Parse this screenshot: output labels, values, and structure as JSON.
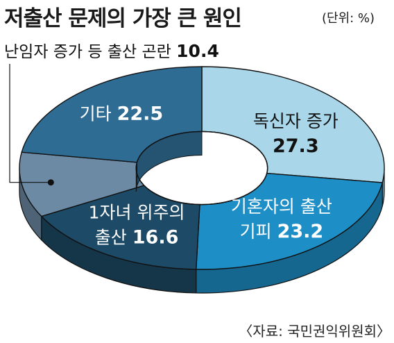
{
  "title": "저출산 문제의 가장 큰 원인",
  "unit": "(단위: %)",
  "source": "〈자료: 국민권익위원회〉",
  "chart_data": {
    "type": "pie",
    "donut": true,
    "unit": "%",
    "slices": [
      {
        "label": "독신자 증가",
        "value": 27.3,
        "label_lines": [
          "독신자 증가"
        ],
        "color": "#a9d6e8",
        "label_color": "#111111",
        "label_pos": "inside"
      },
      {
        "label": "기혼자의 출산 기피",
        "value": 23.2,
        "label_lines": [
          "기혼자의 출산",
          "기피"
        ],
        "color": "#1e8fc6",
        "label_color": "#ffffff",
        "label_pos": "inside"
      },
      {
        "label": "1자녀 위주의 출산",
        "value": 16.6,
        "label_lines": [
          "1자녀 위주의",
          "출산"
        ],
        "color": "#1d4a66",
        "label_color": "#ffffff",
        "label_pos": "inside"
      },
      {
        "label": "난임자 증가 등 출산 곤란",
        "value": 10.4,
        "label_lines": [
          "난임자 증가 등 출산 곤란"
        ],
        "color": "#6c8aa4",
        "label_color": "#111111",
        "label_pos": "callout"
      },
      {
        "label": "기타",
        "value": 22.5,
        "label_lines": [
          "기타"
        ],
        "color": "#2f6c94",
        "label_color": "#ffffff",
        "label_pos": "inside"
      }
    ]
  }
}
